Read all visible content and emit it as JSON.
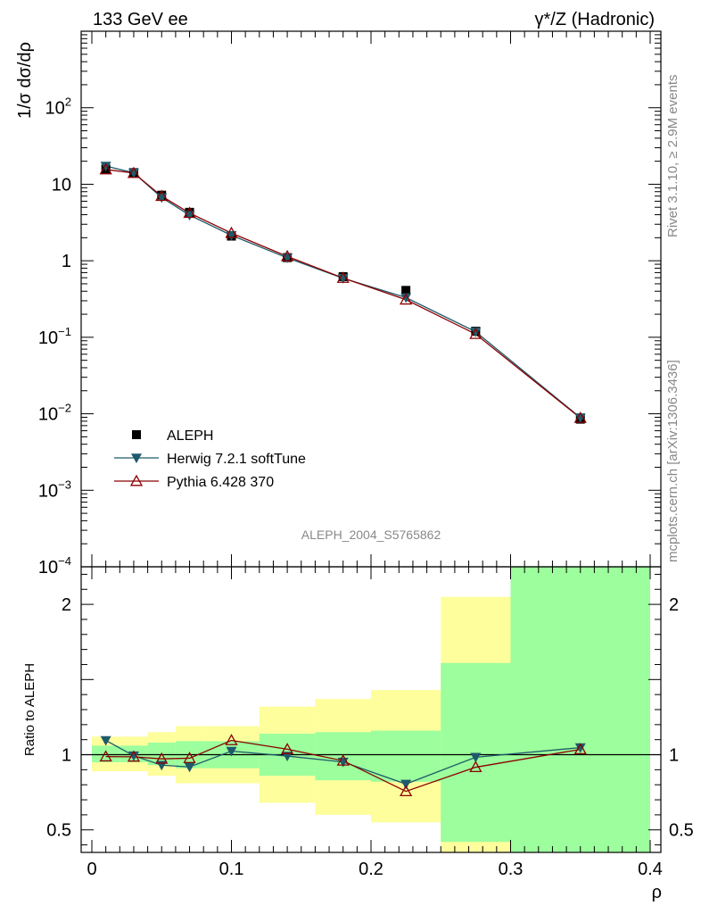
{
  "chart_data": {
    "type": "scatter",
    "title_left": "133 GeV ee",
    "title_right": "γ*/Z (Hadronic)",
    "analysis_label": "ALEPH_2004_S5765862",
    "side_label_top": "Rivet 3.1.10, ≥ 2.9M events",
    "side_label_bottom": "mcplots.cern.ch [arXiv:1306.3436]",
    "xlabel": "ρ",
    "ylabel_main": "1/σ dσ/dρ",
    "ylabel_ratio": "Ratio to ALEPH",
    "xlim": [
      0,
      0.4
    ],
    "ylim_main": [
      0.0001,
      1000
    ],
    "ylim_ratio": [
      0.35,
      2.25
    ],
    "x_ticks": [
      {
        "value": 0,
        "label": "0"
      },
      {
        "value": 0.1,
        "label": "0.1"
      },
      {
        "value": 0.2,
        "label": "0.2"
      },
      {
        "value": 0.3,
        "label": "0.3"
      },
      {
        "value": 0.4,
        "label": "0.4"
      }
    ],
    "y_ticks_main": [
      {
        "value": 0.0001,
        "base": "10",
        "exp": "−4"
      },
      {
        "value": 0.001,
        "base": "10",
        "exp": "−3"
      },
      {
        "value": 0.01,
        "base": "10",
        "exp": "−2"
      },
      {
        "value": 0.1,
        "base": "10",
        "exp": "−1"
      },
      {
        "value": 1,
        "base": "1",
        "exp": ""
      },
      {
        "value": 10,
        "base": "10",
        "exp": ""
      },
      {
        "value": 100,
        "base": "10",
        "exp": "2"
      }
    ],
    "y_ticks_ratio": [
      {
        "value": 0.5,
        "label": "0.5"
      },
      {
        "value": 1,
        "label": "1"
      },
      {
        "value": 2,
        "label": "2"
      }
    ],
    "bins": [
      {
        "lo": 0.0,
        "hi": 0.02,
        "x": 0.01,
        "data": 15.8,
        "herwig": 17.3,
        "pythia": 15.6,
        "band_inner": [
          0.95,
          1.06
        ],
        "band_outer": [
          0.89,
          1.12
        ]
      },
      {
        "lo": 0.02,
        "hi": 0.04,
        "x": 0.03,
        "data": 14.2,
        "herwig": 14.1,
        "pythia": 14.0,
        "band_inner": [
          0.95,
          1.06
        ],
        "band_outer": [
          0.89,
          1.12
        ]
      },
      {
        "lo": 0.04,
        "hi": 0.06,
        "x": 0.05,
        "data": 7.2,
        "herwig": 6.7,
        "pythia": 7.0,
        "band_inner": [
          0.93,
          1.08
        ],
        "band_outer": [
          0.86,
          1.15
        ]
      },
      {
        "lo": 0.06,
        "hi": 0.08,
        "x": 0.07,
        "data": 4.3,
        "herwig": 3.95,
        "pythia": 4.2,
        "band_inner": [
          0.91,
          1.09
        ],
        "band_outer": [
          0.81,
          1.19
        ]
      },
      {
        "lo": 0.08,
        "hi": 0.12,
        "x": 0.1,
        "data": 2.1,
        "herwig": 2.15,
        "pythia": 2.3,
        "band_inner": [
          0.91,
          1.09
        ],
        "band_outer": [
          0.81,
          1.19
        ]
      },
      {
        "lo": 0.12,
        "hi": 0.16,
        "x": 0.14,
        "data": 1.1,
        "herwig": 1.09,
        "pythia": 1.14,
        "band_inner": [
          0.86,
          1.14
        ],
        "band_outer": [
          0.68,
          1.32
        ]
      },
      {
        "lo": 0.16,
        "hi": 0.2,
        "x": 0.18,
        "data": 0.62,
        "herwig": 0.59,
        "pythia": 0.595,
        "band_inner": [
          0.83,
          1.15
        ],
        "band_outer": [
          0.6,
          1.37
        ]
      },
      {
        "lo": 0.2,
        "hi": 0.25,
        "x": 0.225,
        "data": 0.41,
        "herwig": 0.33,
        "pythia": 0.31,
        "band_inner": [
          0.82,
          1.16
        ],
        "band_outer": [
          0.55,
          1.43
        ]
      },
      {
        "lo": 0.25,
        "hi": 0.3,
        "x": 0.275,
        "data": 0.12,
        "herwig": 0.118,
        "pythia": 0.11,
        "band_inner": [
          0.42,
          1.61
        ],
        "band_outer": [
          0.35,
          2.05
        ]
      },
      {
        "lo": 0.3,
        "hi": 0.4,
        "x": 0.35,
        "data": 0.0085,
        "herwig": 0.0089,
        "pythia": 0.0088,
        "band_inner": [
          0.35,
          2.25
        ],
        "band_outer": [
          0.35,
          2.25
        ]
      }
    ],
    "series": [
      {
        "name": "ALEPH",
        "key": "data",
        "marker": "square",
        "color": "#000000"
      },
      {
        "name": "Herwig 7.2.1 softTune",
        "key": "herwig",
        "marker": "triangle-down",
        "color": "#1f5a6b"
      },
      {
        "name": "Pythia 6.428 370",
        "key": "pythia",
        "marker": "triangle-up-open",
        "color": "#8b0000"
      }
    ],
    "colors": {
      "band_inner": "#9cfe9c",
      "band_outer": "#fefe9c",
      "axis": "#000000",
      "label_grey": "#888888"
    }
  }
}
